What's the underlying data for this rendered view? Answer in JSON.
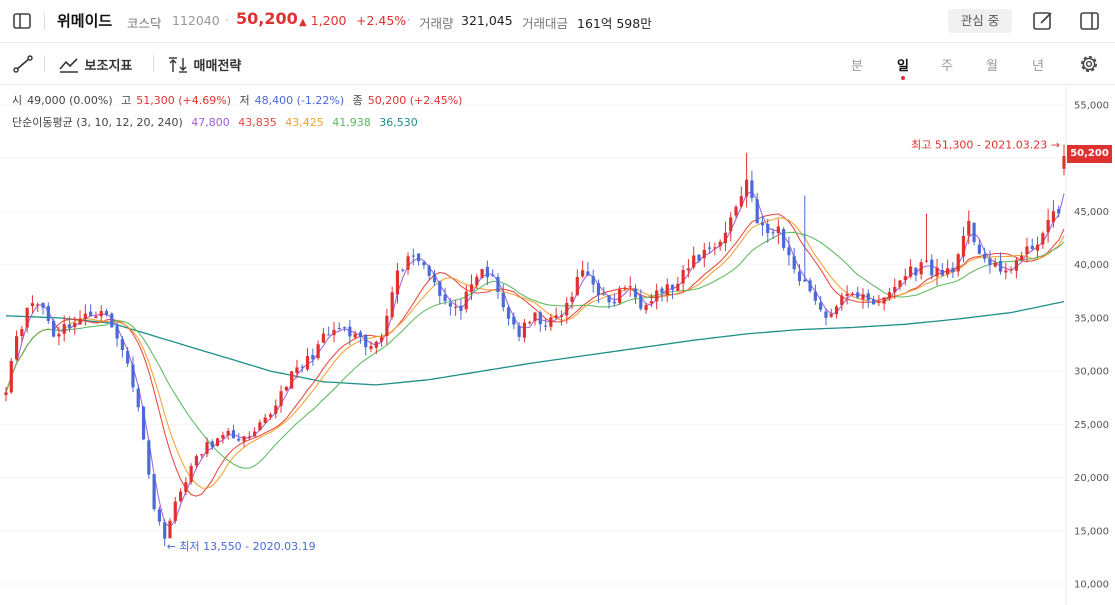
{
  "header": {
    "name": "위메이드",
    "market": "코스닥",
    "code": "112040",
    "separator": "·",
    "price": "50,200",
    "change_arrow": "▲",
    "change": "1,200",
    "change_pct": "+2.45%",
    "volume_label": "거래량",
    "volume": "321,045",
    "amount_label": "거래대금",
    "amount": "161억 598만",
    "watch_label": "관심 중",
    "icons": [
      "sidebar-icon",
      "edit-icon",
      "split-view-icon"
    ]
  },
  "toolbar": {
    "draw_icon": "line-draw-icon",
    "indicators_label": "보조지표",
    "strategy_label": "매매전략",
    "periods": [
      "분",
      "일",
      "주",
      "월",
      "년"
    ],
    "active_period": "일",
    "settings_icon": "gear-icon"
  },
  "ohlc": {
    "open_label": "시",
    "open": "49,000 (0.00%)",
    "high_label": "고",
    "high": "51,300 (+4.69%)",
    "low_label": "저",
    "low": "48,400 (-1.22%)",
    "close_label": "종",
    "close": "50,200 (+2.45%)"
  },
  "ma": {
    "label": "단순이동평균 (3, 10, 12, 20, 240)",
    "values": [
      {
        "period": 3,
        "value": "47,800",
        "color": "#a15de0"
      },
      {
        "period": 10,
        "value": "43,835",
        "color": "#e8453c"
      },
      {
        "period": 12,
        "value": "43,425",
        "color": "#f0a030"
      },
      {
        "period": 20,
        "value": "41,938",
        "color": "#5cb860"
      },
      {
        "period": 240,
        "value": "36,530",
        "color": "#1e8f8a"
      }
    ]
  },
  "chart_data": {
    "type": "candlestick",
    "y_axis_ticks": [
      "55,000",
      "50,000",
      "45,000",
      "40,000",
      "35,000",
      "30,000",
      "25,000",
      "20,000",
      "15,000",
      "10,000"
    ],
    "ylim": [
      10000,
      55000
    ],
    "up_color": "#e03131",
    "down_color": "#4a6ad6",
    "last_price_tag": "50,200",
    "high_annotation": "최고 51,300 - 2021.03.23 →",
    "low_annotation": "← 최저 13,550 - 2020.03.19",
    "price_path_keypoints": [
      [
        0,
        28500
      ],
      [
        2,
        33500
      ],
      [
        5,
        36500
      ],
      [
        7,
        36000
      ],
      [
        9,
        33500
      ],
      [
        12,
        34500
      ],
      [
        15,
        35000
      ],
      [
        18,
        36000
      ],
      [
        21,
        33000
      ],
      [
        23,
        31000
      ],
      [
        26,
        24000
      ],
      [
        28,
        17000
      ],
      [
        30,
        14500
      ],
      [
        32,
        17500
      ],
      [
        35,
        21000
      ],
      [
        38,
        23000
      ],
      [
        42,
        24000
      ],
      [
        46,
        23500
      ],
      [
        50,
        26000
      ],
      [
        53,
        29000
      ],
      [
        57,
        31000
      ],
      [
        60,
        33000
      ],
      [
        63,
        34000
      ],
      [
        66,
        33000
      ],
      [
        69,
        32000
      ],
      [
        71,
        33500
      ],
      [
        73,
        38000
      ],
      [
        76,
        41000
      ],
      [
        78,
        40500
      ],
      [
        80,
        39500
      ],
      [
        83,
        36500
      ],
      [
        85,
        35500
      ],
      [
        88,
        37500
      ],
      [
        90,
        39500
      ],
      [
        92,
        38500
      ],
      [
        94,
        36000
      ],
      [
        97,
        33500
      ],
      [
        100,
        35000
      ],
      [
        103,
        34500
      ],
      [
        106,
        36000
      ],
      [
        109,
        39500
      ],
      [
        111,
        38500
      ],
      [
        114,
        36000
      ],
      [
        117,
        38000
      ],
      [
        120,
        36500
      ],
      [
        123,
        37500
      ],
      [
        127,
        38000
      ],
      [
        130,
        40500
      ],
      [
        133,
        41500
      ],
      [
        136,
        43000
      ],
      [
        138,
        45500
      ],
      [
        140,
        48000
      ],
      [
        142,
        44500
      ],
      [
        144,
        42500
      ],
      [
        146,
        43500
      ],
      [
        148,
        40500
      ],
      [
        150,
        39000
      ],
      [
        153,
        37000
      ],
      [
        155,
        34500
      ],
      [
        157,
        36500
      ],
      [
        160,
        37000
      ],
      [
        162,
        37500
      ],
      [
        165,
        36000
      ],
      [
        168,
        38000
      ],
      [
        171,
        39500
      ],
      [
        174,
        40000
      ],
      [
        177,
        39000
      ],
      [
        180,
        40500
      ],
      [
        182,
        43500
      ],
      [
        184,
        41500
      ],
      [
        186,
        40000
      ],
      [
        188,
        39000
      ],
      [
        190,
        40000
      ],
      [
        193,
        41000
      ],
      [
        195,
        42500
      ],
      [
        197,
        43500
      ],
      [
        199,
        45500
      ],
      [
        200,
        50200
      ]
    ],
    "ma240_keypoints": [
      [
        0,
        35200
      ],
      [
        10,
        35000
      ],
      [
        20,
        34500
      ],
      [
        30,
        33000
      ],
      [
        40,
        31500
      ],
      [
        50,
        30000
      ],
      [
        60,
        29000
      ],
      [
        70,
        28700
      ],
      [
        80,
        29200
      ],
      [
        90,
        30000
      ],
      [
        100,
        30800
      ],
      [
        110,
        31500
      ],
      [
        120,
        32200
      ],
      [
        130,
        32900
      ],
      [
        140,
        33500
      ],
      [
        150,
        33900
      ],
      [
        160,
        34100
      ],
      [
        170,
        34400
      ],
      [
        180,
        34900
      ],
      [
        190,
        35500
      ],
      [
        200,
        36530
      ]
    ]
  }
}
